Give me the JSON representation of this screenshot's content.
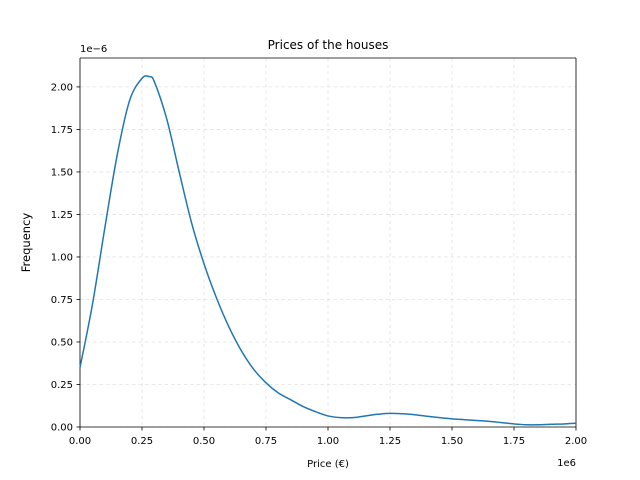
{
  "chart_data": {
    "type": "line",
    "title": "Prices of the houses",
    "xlabel": "Price (€)",
    "ylabel": "Frequency",
    "x_offset_label": "1e6",
    "y_offset_label": "1e−6",
    "xlim": [
      0,
      2.0
    ],
    "ylim": [
      0,
      2.17
    ],
    "x_scale_factor": 1000000,
    "y_scale_factor": 1e-06,
    "grid": true,
    "legend": "none",
    "line_color": "#1f77b4",
    "x_ticks": [
      {
        "value": 0.0,
        "label": "0.00"
      },
      {
        "value": 0.25,
        "label": "0.25"
      },
      {
        "value": 0.5,
        "label": "0.50"
      },
      {
        "value": 0.75,
        "label": "0.75"
      },
      {
        "value": 1.0,
        "label": "1.00"
      },
      {
        "value": 1.25,
        "label": "1.25"
      },
      {
        "value": 1.5,
        "label": "1.50"
      },
      {
        "value": 1.75,
        "label": "1.75"
      },
      {
        "value": 2.0,
        "label": "2.00"
      }
    ],
    "y_ticks": [
      {
        "value": 0.0,
        "label": "0.00"
      },
      {
        "value": 0.25,
        "label": "0.25"
      },
      {
        "value": 0.5,
        "label": "0.50"
      },
      {
        "value": 0.75,
        "label": "0.75"
      },
      {
        "value": 1.0,
        "label": "1.00"
      },
      {
        "value": 1.25,
        "label": "1.25"
      },
      {
        "value": 1.5,
        "label": "1.50"
      },
      {
        "value": 1.75,
        "label": "1.75"
      },
      {
        "value": 2.0,
        "label": "2.00"
      }
    ],
    "series": [
      {
        "x": [
          0.0,
          0.05,
          0.1,
          0.15,
          0.2,
          0.25,
          0.28,
          0.3,
          0.35,
          0.4,
          0.45,
          0.5,
          0.55,
          0.6,
          0.65,
          0.7,
          0.75,
          0.8,
          0.85,
          0.9,
          0.95,
          1.0,
          1.05,
          1.1,
          1.15,
          1.2,
          1.25,
          1.3,
          1.35,
          1.4,
          1.45,
          1.5,
          1.55,
          1.6,
          1.65,
          1.7,
          1.75,
          1.8,
          1.85,
          1.9,
          1.95,
          2.0
        ],
        "y": [
          0.35,
          0.72,
          1.17,
          1.6,
          1.92,
          2.05,
          2.06,
          2.03,
          1.81,
          1.5,
          1.2,
          0.96,
          0.76,
          0.59,
          0.45,
          0.34,
          0.26,
          0.2,
          0.16,
          0.12,
          0.09,
          0.065,
          0.055,
          0.055,
          0.065,
          0.075,
          0.08,
          0.078,
          0.072,
          0.063,
          0.055,
          0.048,
          0.043,
          0.038,
          0.033,
          0.026,
          0.018,
          0.013,
          0.013,
          0.016,
          0.018,
          0.022
        ]
      }
    ]
  }
}
